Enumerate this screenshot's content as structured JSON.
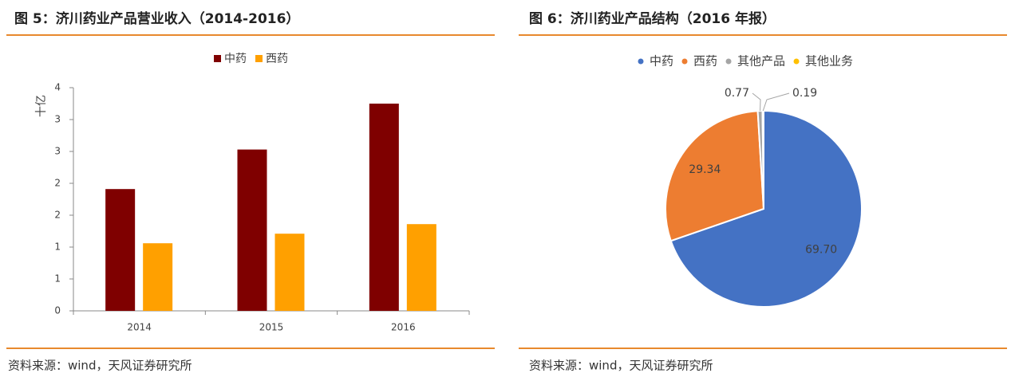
{
  "chart_data": [
    {
      "type": "bar",
      "title": "图 5：济川药业产品营业收入（2014-2016）",
      "y_label": "十亿",
      "categories": [
        "2014",
        "2015",
        "2016"
      ],
      "series": [
        {
          "name": "中药",
          "color": "#7f0000",
          "values": [
            1.91,
            2.53,
            3.25
          ]
        },
        {
          "name": "西药",
          "color": "#ffa000",
          "values": [
            1.06,
            1.21,
            1.36
          ]
        }
      ],
      "ylim": [
        0,
        3.5
      ],
      "yticks": [
        0,
        {
          "value": 0.5,
          "label": "1"
        },
        1,
        {
          "value": 1.5,
          "label": "2"
        },
        2,
        {
          "value": 2.5,
          "label": "3"
        },
        3,
        {
          "value": 3.5,
          "label": "4"
        }
      ],
      "grid": false,
      "legend": "top",
      "source": "资料来源：wind，天风证券研究所"
    },
    {
      "type": "pie",
      "title": "图 6：济川药业产品结构（2016 年报）",
      "categories": [
        "中药",
        "西药",
        "其他产品",
        "其他业务"
      ],
      "values": [
        69.7,
        29.34,
        0.77,
        0.19
      ],
      "value_labels": [
        "69.70",
        "29.34",
        "0.77",
        "0.19"
      ],
      "colors": [
        "#4472c4",
        "#ed7d31",
        "#a5a5a5",
        "#ffc000"
      ],
      "legend": "top",
      "source": "资料来源：wind，天风证券研究所"
    }
  ]
}
